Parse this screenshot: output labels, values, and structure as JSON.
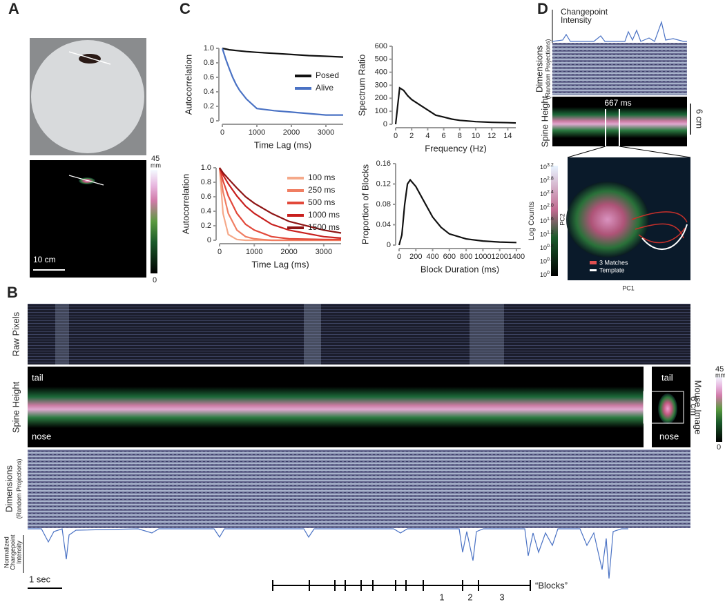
{
  "panel_labels": [
    "A",
    "B",
    "C",
    "D"
  ],
  "panel_a": {
    "scale_bar": "10 cm",
    "colorbar": {
      "max": "45",
      "unit": "mm",
      "min": "0"
    }
  },
  "panel_b": {
    "raw_pixels": "Raw Pixels",
    "spine_height": "Spine Height",
    "tail": "tail",
    "nose": "nose",
    "dimensions": "Dimensions",
    "random_projections": "(Random Projections)",
    "mouse_image": "Mouse Image",
    "mouse_tail": "tail",
    "mouse_nose": "nose",
    "scale_bar": "6 cm",
    "colorbar": {
      "max": "45",
      "unit": "mm",
      "min": "0"
    },
    "changepoint": [
      "Normalized",
      "Changepoint",
      "Intensity"
    ],
    "time_scale": "1 sec",
    "block_numbers": [
      "1",
      "2",
      "3"
    ],
    "blocks_label": "“Blocks”"
  },
  "panel_d": {
    "changepoint": [
      "Changepoint",
      "Intensity"
    ],
    "dimensions": "Dimensions",
    "random_projections": "(Random Projections)",
    "spine_height": "Spine Height",
    "interval": "667 ms",
    "scale_bar": "6 cm",
    "log_counts": "Log Counts",
    "log_ticks": [
      {
        "base": "10",
        "exp": "3.2"
      },
      {
        "base": "10",
        "exp": "2.8"
      },
      {
        "base": "10",
        "exp": "2.4"
      },
      {
        "base": "10",
        "exp": "2.0"
      },
      {
        "base": "10",
        "exp": "1.6"
      },
      {
        "base": "10",
        "exp": "1.2"
      },
      {
        "base": "10",
        "exp": "0.8"
      },
      {
        "base": "10",
        "exp": "0.4"
      },
      {
        "base": "10",
        "exp": "0"
      }
    ],
    "pc1": "PC1",
    "pc2": "PC2",
    "matches": "3 Matches",
    "template": "Template"
  },
  "chart_data": [
    {
      "type": "line",
      "ylabel": "Autocorrelation",
      "xlabel": "Time Lag (ms)",
      "legend": "right",
      "x": [
        0,
        100,
        200,
        300,
        400,
        500,
        700,
        1000,
        1500,
        2000,
        2500,
        3000,
        3500
      ],
      "series": [
        {
          "name": "Posed",
          "color": "#111111",
          "values": [
            1.0,
            0.99,
            0.98,
            0.975,
            0.97,
            0.965,
            0.955,
            0.945,
            0.93,
            0.915,
            0.9,
            0.89,
            0.88
          ]
        },
        {
          "name": "Alive",
          "color": "#4a72c4",
          "values": [
            1.0,
            0.85,
            0.72,
            0.6,
            0.5,
            0.42,
            0.3,
            0.17,
            0.14,
            0.12,
            0.1,
            0.08,
            0.08
          ]
        }
      ],
      "xlim": [
        0,
        3500
      ],
      "xticks": [
        0,
        1000,
        2000,
        3000
      ],
      "ylim": [
        0,
        1
      ],
      "yticks": [
        0,
        0.2,
        0.4,
        0.6,
        0.8,
        {
          "value": 1,
          "label": "1.0"
        }
      ]
    },
    {
      "type": "line",
      "ylabel": "Spectrum Ratio",
      "xlabel": "Frequency (Hz)",
      "x": [
        0,
        0.5,
        1,
        1.5,
        2,
        3,
        4,
        5,
        6,
        7,
        8,
        10,
        12,
        14,
        15
      ],
      "series": [
        {
          "name": null,
          "color": "#111111",
          "values": [
            0,
            280,
            260,
            220,
            190,
            150,
            110,
            70,
            55,
            40,
            30,
            20,
            15,
            12,
            10
          ]
        }
      ],
      "xlim": [
        0,
        15
      ],
      "xticks": [
        0,
        2,
        4,
        6,
        8,
        10,
        12,
        14
      ],
      "ylim": [
        0,
        600
      ],
      "yticks": [
        0,
        100,
        200,
        300,
        400,
        500,
        600
      ]
    },
    {
      "type": "line",
      "ylabel": "Autocorrelation",
      "xlabel": "Time Lag (ms)",
      "legend": "upper right",
      "x": [
        0,
        100,
        250,
        500,
        750,
        1000,
        1500,
        2000,
        3000,
        3500
      ],
      "series": [
        {
          "name": "100 ms",
          "color": "#f5a98a",
          "values": [
            1.0,
            0.37,
            0.08,
            0.01,
            0,
            0,
            0,
            0,
            0,
            0
          ]
        },
        {
          "name": "250 ms",
          "color": "#f07e62",
          "values": [
            1.0,
            0.67,
            0.37,
            0.14,
            0.05,
            0.02,
            0,
            0,
            0,
            0
          ]
        },
        {
          "name": "500 ms",
          "color": "#e2483a",
          "values": [
            1.0,
            0.82,
            0.61,
            0.37,
            0.22,
            0.14,
            0.05,
            0.02,
            0.01,
            0.01
          ]
        },
        {
          "name": "1000 ms",
          "color": "#c8201e",
          "values": [
            1.0,
            0.9,
            0.78,
            0.61,
            0.47,
            0.37,
            0.22,
            0.14,
            0.05,
            0.03
          ]
        },
        {
          "name": "1500 ms",
          "color": "#8e1414",
          "values": [
            1.0,
            0.93,
            0.85,
            0.72,
            0.6,
            0.51,
            0.37,
            0.26,
            0.14,
            0.1
          ]
        }
      ],
      "xlim": [
        0,
        3500
      ],
      "xticks": [
        0,
        1000,
        2000,
        3000
      ],
      "ylim": [
        0,
        1
      ],
      "yticks": [
        0,
        0.2,
        0.4,
        0.6,
        0.8,
        {
          "value": 1,
          "label": "1.0"
        }
      ]
    },
    {
      "type": "line",
      "ylabel": "Proportion of Blocks",
      "xlabel": "Block Duration (ms)",
      "x": [
        0,
        33,
        67,
        100,
        133,
        200,
        300,
        400,
        500,
        600,
        800,
        1000,
        1200,
        1400
      ],
      "series": [
        {
          "name": null,
          "color": "#111111",
          "values": [
            0,
            0.02,
            0.08,
            0.12,
            0.128,
            0.115,
            0.085,
            0.055,
            0.035,
            0.022,
            0.012,
            0.008,
            0.006,
            0.005
          ]
        }
      ],
      "xlim": [
        0,
        1450
      ],
      "xticks": [
        0,
        200,
        400,
        600,
        800,
        1000,
        1200,
        1400
      ],
      "ylim": [
        0,
        0.16
      ],
      "yticks": [
        0,
        0.04,
        0.08,
        0.12,
        0.16
      ]
    }
  ]
}
